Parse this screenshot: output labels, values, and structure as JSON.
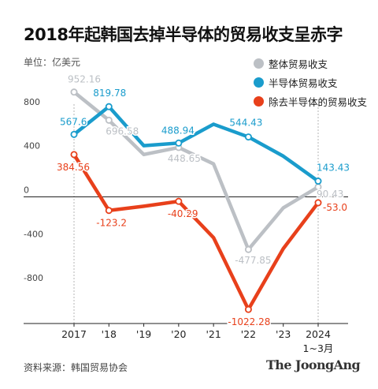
{
  "title": "2018年起韩国去掉半导体的贸易收支呈赤字",
  "unit_label": "单位：亿美元",
  "source": "资料来源：韩国贸易协会",
  "brand": "The JoongAng",
  "chart_data": {
    "type": "line",
    "categories": [
      "2017",
      "'18",
      "'19",
      "'20",
      "'21",
      "'22",
      "'23",
      "2024"
    ],
    "x_sublabel_last": "1~3月",
    "ylim": [
      -1150,
      1000
    ],
    "yticks": [
      800,
      400,
      0,
      -400,
      -800
    ],
    "ytick_labels": [
      "800",
      "400",
      "0",
      "-400",
      "-800"
    ],
    "grid": false,
    "legend": "top-right",
    "series": [
      {
        "name": "整体贸易收支",
        "color": "#bcc0c5",
        "values": [
          952.16,
          696.58,
          385,
          448.65,
          300,
          -477.85,
          -100,
          90.43
        ],
        "labels": [
          "952.16",
          "696.58",
          null,
          "448.65",
          null,
          "-477.85",
          null,
          "90.43"
        ],
        "markers": [
          true,
          true,
          false,
          true,
          false,
          true,
          false,
          true
        ]
      },
      {
        "name": "半导体贸易收支",
        "color": "#1a9ccc",
        "values": [
          567.6,
          819.78,
          465,
          488.94,
          660,
          544.43,
          370,
          143.43
        ],
        "labels": [
          "567.6",
          "819.78",
          null,
          "488.94",
          null,
          "544.43",
          null,
          "143.43"
        ],
        "markers": [
          true,
          true,
          false,
          true,
          false,
          true,
          false,
          true
        ]
      },
      {
        "name": "除去半导体的贸易收支",
        "color": "#e8401b",
        "values": [
          384.56,
          -123.2,
          -85,
          -40.29,
          -370,
          -1022.28,
          -470,
          -53.0
        ],
        "labels": [
          "384.56",
          "-123.2",
          null,
          "-40.29",
          null,
          "-1022.28",
          null,
          "-53.0"
        ],
        "markers": [
          true,
          true,
          false,
          true,
          false,
          true,
          false,
          true
        ]
      }
    ]
  }
}
